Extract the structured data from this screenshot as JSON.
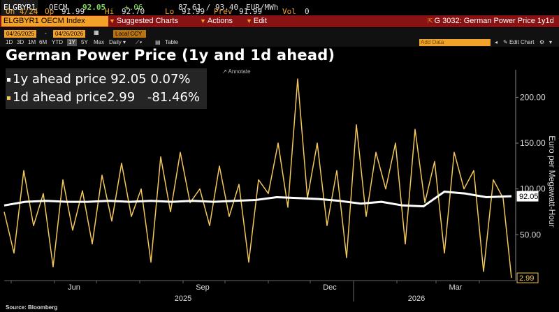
{
  "quote": {
    "ticker": "ELGBYR1",
    "exchange": "OECM",
    "last": "92.05",
    "change": "+.06",
    "bid_ask": "87.61 / 93.40",
    "unit": "EUR/MWh",
    "date_label": "On 4/24",
    "op_label": "Op",
    "op_value": "91.99",
    "hi_label": "Hi",
    "hi_value": "92.70",
    "lo_label": "Lo",
    "lo_value": "91.99",
    "prev_label": "Prev",
    "prev_value": "91.99",
    "vol_label": "Vol",
    "vol_value": "0"
  },
  "toolbar": {
    "security": "ELGBYR1 OECM Index",
    "suggested_charts": "Suggested Charts",
    "actions": "Actions",
    "edit": "Edit",
    "function_title": "G 3032: German Power Price 1y1d"
  },
  "controls": {
    "start_date": "04/26/2025",
    "end_date": "04/26/2026",
    "currency": "Local CCY",
    "ranges": [
      "1D",
      "3D",
      "1M",
      "6M",
      "YTD",
      "1Y",
      "5Y",
      "Max"
    ],
    "active_range": "1Y",
    "frequency": "Daily",
    "table_label": "Table",
    "add_data": "Add Data",
    "edit_chart": "Edit Chart"
  },
  "annotate": "Annotate",
  "source": "Source: Bloomberg",
  "colors": {
    "background": "#000000",
    "series_1y": "#ffffff",
    "series_1d": "#f3c75a",
    "toolbar_red": "#8a1212",
    "accent_orange": "#f3a229"
  },
  "chart_data": {
    "type": "line",
    "title": "German Power Price (1y and 1d ahead)",
    "ylabel": "Euro per Megawatt-Hour",
    "ylim": [
      0,
      230
    ],
    "yticks": [
      50,
      100,
      150,
      200
    ],
    "ytick_labels": [
      "50.00",
      "100.00",
      "150.00",
      "200.00"
    ],
    "x_month_labels": [
      "Jun",
      "Sep",
      "Dec",
      "Mar"
    ],
    "x_year_labels": [
      "2025",
      "2026"
    ],
    "x_start": "2025-04-26",
    "x_end": "2026-04-26",
    "legend_position": "top-left",
    "grid": false,
    "series": [
      {
        "name": "1y ahead price",
        "last_value": "92.05",
        "last_change": "0.07%",
        "color": "#ffffff",
        "x": [
          "2025-04-26",
          "2025-05-11",
          "2025-05-26",
          "2025-06-10",
          "2025-06-25",
          "2025-07-10",
          "2025-07-25",
          "2025-08-09",
          "2025-08-24",
          "2025-09-08",
          "2025-09-23",
          "2025-10-08",
          "2025-10-23",
          "2025-11-07",
          "2025-11-22",
          "2025-12-07",
          "2025-12-22",
          "2026-01-06",
          "2026-01-21",
          "2026-02-05",
          "2026-02-20",
          "2026-03-07",
          "2026-03-22",
          "2026-04-06",
          "2026-04-24"
        ],
        "values": [
          82,
          86,
          87,
          86,
          86,
          87,
          86,
          87,
          86,
          87,
          86,
          87,
          88,
          91,
          90,
          89,
          87,
          84,
          86,
          82,
          81,
          97,
          95,
          91,
          92.05
        ]
      },
      {
        "name": "1d ahead price",
        "last_value": "2.99",
        "last_change": "-81.46%",
        "color": "#f3c75a",
        "x": [
          "2025-04-26",
          "2025-05-03",
          "2025-05-10",
          "2025-05-17",
          "2025-05-24",
          "2025-05-31",
          "2025-06-07",
          "2025-06-14",
          "2025-06-21",
          "2025-06-28",
          "2025-07-05",
          "2025-07-12",
          "2025-07-19",
          "2025-07-26",
          "2025-08-02",
          "2025-08-09",
          "2025-08-16",
          "2025-08-23",
          "2025-08-30",
          "2025-09-06",
          "2025-09-13",
          "2025-09-20",
          "2025-09-27",
          "2025-10-04",
          "2025-10-11",
          "2025-10-18",
          "2025-10-25",
          "2025-11-01",
          "2025-11-08",
          "2025-11-15",
          "2025-11-22",
          "2025-11-29",
          "2025-12-06",
          "2025-12-13",
          "2025-12-20",
          "2025-12-27",
          "2026-01-03",
          "2026-01-10",
          "2026-01-17",
          "2026-01-24",
          "2026-01-31",
          "2026-02-07",
          "2026-02-14",
          "2026-02-21",
          "2026-02-28",
          "2026-03-07",
          "2026-03-14",
          "2026-03-21",
          "2026-03-28",
          "2026-04-04",
          "2026-04-11",
          "2026-04-18",
          "2026-04-24"
        ],
        "values": [
          75,
          30,
          120,
          60,
          95,
          15,
          110,
          55,
          98,
          40,
          115,
          65,
          128,
          70,
          100,
          20,
          135,
          75,
          140,
          85,
          100,
          60,
          125,
          70,
          105,
          20,
          110,
          95,
          150,
          80,
          220,
          90,
          150,
          60,
          120,
          25,
          170,
          70,
          140,
          100,
          150,
          40,
          165,
          85,
          130,
          30,
          140,
          100,
          120,
          10,
          110,
          90,
          2.99
        ]
      }
    ]
  }
}
